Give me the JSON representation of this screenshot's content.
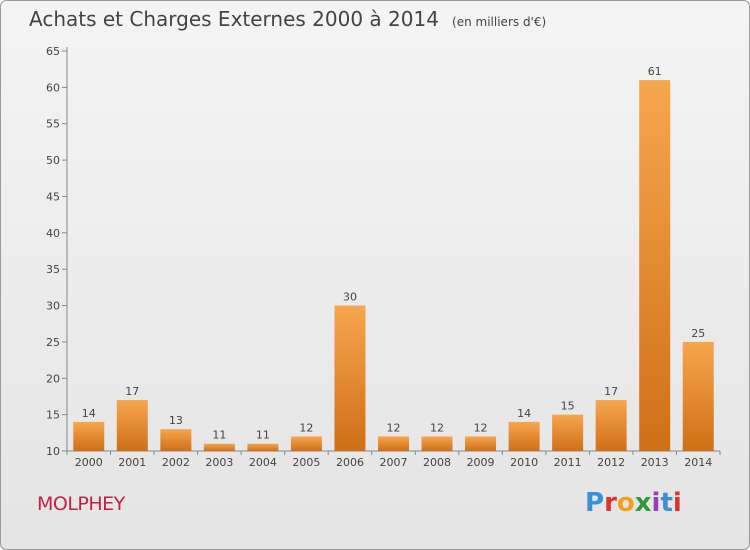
{
  "header": {
    "title": "Achats et Charges Externes 2000 à 2014",
    "subtitle": "(en milliers d'€)"
  },
  "footer": {
    "commune": "MOLPHEY",
    "logo_letters": [
      "P",
      "r",
      "o",
      "x",
      "i",
      "t",
      "i"
    ]
  },
  "colors": {
    "bar_light": "#f7a64f",
    "bar_dark": "#cf6f16",
    "commune": "#c0214b",
    "logo": [
      "#3a8fd6",
      "#e0322d",
      "#f2a01c",
      "#2f9a3a",
      "#9b3fb5",
      "#3a8fd6",
      "#e0322d"
    ]
  },
  "chart_data": {
    "type": "bar",
    "title": "Achats et Charges Externes 2000 à 2014",
    "subtitle": "(en milliers d'€)",
    "xlabel": "",
    "ylabel": "",
    "categories": [
      "2000",
      "2001",
      "2002",
      "2003",
      "2004",
      "2005",
      "2006",
      "2007",
      "2008",
      "2009",
      "2010",
      "2011",
      "2012",
      "2013",
      "2014"
    ],
    "values": [
      14,
      17,
      13,
      11,
      11,
      12,
      30,
      12,
      12,
      12,
      14,
      15,
      17,
      61,
      25
    ],
    "ylim": [
      10,
      65
    ],
    "yticks": [
      10,
      15,
      20,
      25,
      30,
      35,
      40,
      45,
      50,
      55,
      60,
      65
    ],
    "grid": false,
    "legend": "none"
  }
}
